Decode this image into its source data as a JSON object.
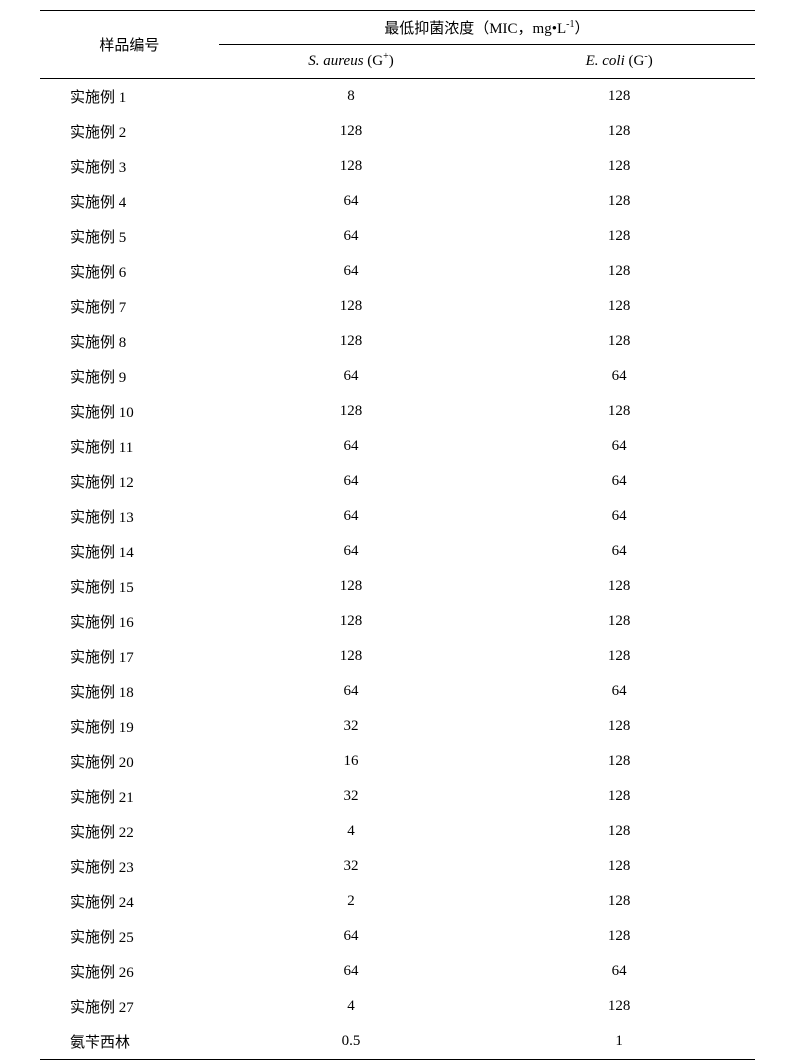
{
  "table": {
    "header": {
      "sample_label": "样品编号",
      "group_label_prefix": "最低抑菌浓度（MIC，mg",
      "group_label_dot": "•",
      "group_label_unit": "L",
      "group_label_exp": "-1",
      "group_label_suffix": "）",
      "col_a_name": "S. aureus",
      "col_a_paren_open": " (G",
      "col_a_sup": "+",
      "col_a_paren_close": ")",
      "col_b_name": "E. coli",
      "col_b_paren_open": " (G",
      "col_b_sup": "-",
      "col_b_paren_close": ")"
    },
    "rows": [
      {
        "sample": "实施例 1",
        "a": "8",
        "b": "128"
      },
      {
        "sample": "实施例 2",
        "a": "128",
        "b": "128"
      },
      {
        "sample": "实施例 3",
        "a": "128",
        "b": "128"
      },
      {
        "sample": "实施例 4",
        "a": "64",
        "b": "128"
      },
      {
        "sample": "实施例 5",
        "a": "64",
        "b": "128"
      },
      {
        "sample": "实施例 6",
        "a": "64",
        "b": "128"
      },
      {
        "sample": "实施例 7",
        "a": "128",
        "b": "128"
      },
      {
        "sample": "实施例 8",
        "a": "128",
        "b": "128"
      },
      {
        "sample": "实施例 9",
        "a": "64",
        "b": "64"
      },
      {
        "sample": "实施例 10",
        "a": "128",
        "b": "128"
      },
      {
        "sample": "实施例 11",
        "a": "64",
        "b": "64"
      },
      {
        "sample": "实施例 12",
        "a": "64",
        "b": "64"
      },
      {
        "sample": "实施例 13",
        "a": "64",
        "b": "64"
      },
      {
        "sample": "实施例 14",
        "a": "64",
        "b": "64"
      },
      {
        "sample": "实施例 15",
        "a": "128",
        "b": "128"
      },
      {
        "sample": "实施例 16",
        "a": "128",
        "b": "128"
      },
      {
        "sample": "实施例 17",
        "a": "128",
        "b": "128"
      },
      {
        "sample": "实施例 18",
        "a": "64",
        "b": "64"
      },
      {
        "sample": "实施例 19",
        "a": "32",
        "b": "128"
      },
      {
        "sample": "实施例 20",
        "a": "16",
        "b": "128"
      },
      {
        "sample": "实施例 21",
        "a": "32",
        "b": "128"
      },
      {
        "sample": "实施例 22",
        "a": "4",
        "b": "128"
      },
      {
        "sample": "实施例 23",
        "a": "32",
        "b": "128"
      },
      {
        "sample": "实施例 24",
        "a": "2",
        "b": "128"
      },
      {
        "sample": "实施例 25",
        "a": "64",
        "b": "128"
      },
      {
        "sample": "实施例 26",
        "a": "64",
        "b": "64"
      },
      {
        "sample": "实施例 27",
        "a": "4",
        "b": "128"
      },
      {
        "sample": "氨苄西林",
        "a": "0.5",
        "b": "1"
      }
    ],
    "style": {
      "background_color": "#ffffff",
      "text_color": "#000000",
      "border_color": "#000000",
      "font_size_body": 15,
      "font_size_sup": 10,
      "top_rule_weight": 1.5,
      "mid_rule_weight": 1,
      "row_padding_v": 7
    }
  }
}
